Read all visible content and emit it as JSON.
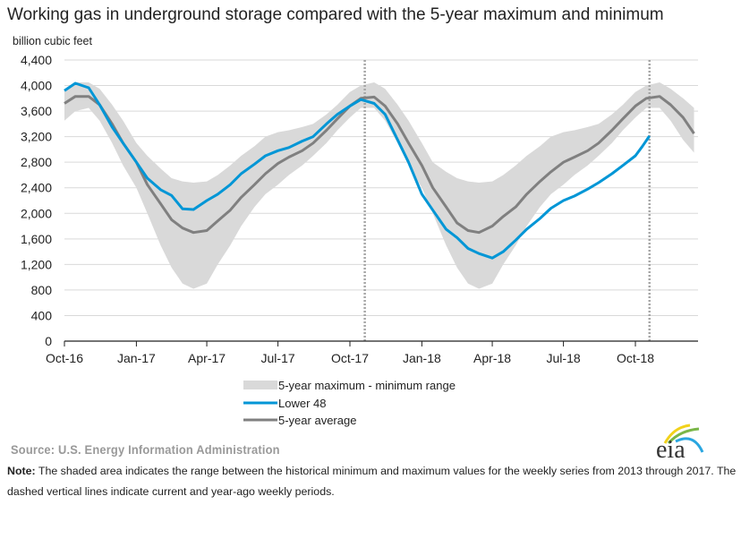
{
  "title": "Working gas in underground  storage compared with the 5-year maximum and minimum",
  "source": "Source:  U.S. Energy Information Administration",
  "note": {
    "label": "Note:",
    "text": " The shaded area indicates the range between the historical minimum and maximum values for the weekly series from 2013 through 2017. The dashed vertical lines indicate current and year-ago weekly periods."
  },
  "logo_text": "eia",
  "colors": {
    "range": "#d9d9d9",
    "lower48": "#0096d6",
    "average": "#808080",
    "dashed": "#a6a6a6",
    "grid": "#d9d9d9"
  },
  "chart_data": {
    "type": "line",
    "ylabel": "billion cubic feet",
    "ylim": [
      0,
      4400
    ],
    "yticks": [
      0,
      400,
      800,
      1200,
      1600,
      2000,
      2400,
      2800,
      3200,
      3600,
      4000,
      4400
    ],
    "ytick_labels": [
      "0",
      "400",
      "800",
      "1,200",
      "1,600",
      "2,000",
      "2,400",
      "2,800",
      "3,200",
      "3,600",
      "4,000",
      "4,400"
    ],
    "xlim": [
      "2016-10-01",
      "2018-12-20"
    ],
    "xticks": [
      "2016-10-01",
      "2017-01-01",
      "2017-04-01",
      "2017-07-01",
      "2017-10-01",
      "2018-01-01",
      "2018-04-01",
      "2018-07-01",
      "2018-10-01"
    ],
    "xtick_labels": [
      "Oct-16",
      "Jan-17",
      "Apr-17",
      "Jul-17",
      "Oct-17",
      "Jan-18",
      "Apr-18",
      "Jul-18",
      "Oct-18"
    ],
    "grid": "horizontal",
    "legend_placement": "bottom",
    "dashed_lines": [
      "2017-10-20",
      "2018-10-19"
    ],
    "x": [
      "2016-10-01",
      "2016-10-15",
      "2016-11-01",
      "2016-11-15",
      "2016-12-01",
      "2016-12-15",
      "2017-01-01",
      "2017-01-15",
      "2017-02-01",
      "2017-02-15",
      "2017-03-01",
      "2017-03-15",
      "2017-04-01",
      "2017-04-15",
      "2017-05-01",
      "2017-05-15",
      "2017-06-01",
      "2017-06-15",
      "2017-07-01",
      "2017-07-15",
      "2017-08-01",
      "2017-08-15",
      "2017-09-01",
      "2017-09-15",
      "2017-10-01",
      "2017-10-15",
      "2017-11-01",
      "2017-11-15",
      "2017-12-01",
      "2017-12-15",
      "2018-01-01",
      "2018-01-15",
      "2018-02-01",
      "2018-02-15",
      "2018-03-01",
      "2018-03-15",
      "2018-04-01",
      "2018-04-15",
      "2018-05-01",
      "2018-05-15",
      "2018-06-01",
      "2018-06-15",
      "2018-07-01",
      "2018-07-15",
      "2018-08-01",
      "2018-08-15",
      "2018-09-01",
      "2018-09-15",
      "2018-10-01",
      "2018-10-15",
      "2018-11-01",
      "2018-11-15",
      "2018-12-01",
      "2018-12-15"
    ],
    "range": {
      "name": "5-year maximum - minimum range",
      "max": [
        3930,
        4050,
        4050,
        3950,
        3700,
        3450,
        3100,
        2900,
        2700,
        2550,
        2500,
        2480,
        2500,
        2600,
        2750,
        2900,
        3050,
        3200,
        3270,
        3300,
        3350,
        3400,
        3550,
        3700,
        3900,
        4000,
        4050,
        3950,
        3700,
        3450,
        3100,
        2800,
        2650,
        2550,
        2500,
        2480,
        2500,
        2600,
        2750,
        2900,
        3050,
        3200,
        3270,
        3300,
        3350,
        3400,
        3550,
        3700,
        3900,
        4000,
        4050,
        3950,
        3800,
        3650
      ],
      "min": [
        3450,
        3600,
        3650,
        3450,
        3100,
        2750,
        2400,
        2000,
        1500,
        1150,
        900,
        820,
        900,
        1200,
        1500,
        1800,
        2100,
        2300,
        2450,
        2600,
        2750,
        2900,
        3100,
        3300,
        3500,
        3650,
        3650,
        3450,
        3100,
        2750,
        2400,
        2000,
        1500,
        1150,
        900,
        820,
        900,
        1200,
        1500,
        1800,
        2100,
        2300,
        2450,
        2600,
        2750,
        2900,
        3100,
        3300,
        3500,
        3650,
        3650,
        3450,
        3150,
        2950
      ]
    },
    "series": [
      {
        "name": "Lower 48",
        "x": [
          "2016-10-01",
          "2016-10-15",
          "2016-11-01",
          "2016-11-15",
          "2016-12-01",
          "2016-12-15",
          "2017-01-01",
          "2017-01-15",
          "2017-02-01",
          "2017-02-15",
          "2017-03-01",
          "2017-03-15",
          "2017-04-01",
          "2017-04-15",
          "2017-05-01",
          "2017-05-15",
          "2017-06-01",
          "2017-06-15",
          "2017-07-01",
          "2017-07-15",
          "2017-08-01",
          "2017-08-15",
          "2017-09-01",
          "2017-09-15",
          "2017-10-01",
          "2017-10-15",
          "2017-11-01",
          "2017-11-15",
          "2017-12-01",
          "2017-12-15",
          "2018-01-01",
          "2018-01-15",
          "2018-02-01",
          "2018-02-15",
          "2018-03-01",
          "2018-03-15",
          "2018-04-01",
          "2018-04-15",
          "2018-05-01",
          "2018-05-15",
          "2018-06-01",
          "2018-06-15",
          "2018-07-01",
          "2018-07-15",
          "2018-08-01",
          "2018-08-15",
          "2018-09-01",
          "2018-09-15",
          "2018-10-01",
          "2018-10-10",
          "2018-10-19"
        ],
        "values": [
          3920,
          4035,
          3965,
          3700,
          3350,
          3100,
          2800,
          2550,
          2370,
          2280,
          2070,
          2060,
          2200,
          2300,
          2450,
          2620,
          2770,
          2900,
          2980,
          3030,
          3130,
          3200,
          3400,
          3550,
          3680,
          3780,
          3720,
          3550,
          3150,
          2800,
          2300,
          2050,
          1750,
          1620,
          1450,
          1370,
          1300,
          1400,
          1580,
          1750,
          1920,
          2080,
          2200,
          2270,
          2380,
          2480,
          2620,
          2750,
          2900,
          3050,
          3210
        ]
      },
      {
        "name": "5-year average",
        "values": [
          3720,
          3830,
          3830,
          3700,
          3400,
          3100,
          2800,
          2450,
          2150,
          1900,
          1770,
          1700,
          1730,
          1880,
          2050,
          2250,
          2450,
          2620,
          2780,
          2880,
          2980,
          3100,
          3300,
          3480,
          3680,
          3800,
          3820,
          3680,
          3400,
          3100,
          2750,
          2400,
          2100,
          1850,
          1730,
          1700,
          1800,
          1950,
          2100,
          2300,
          2500,
          2650,
          2800,
          2880,
          2980,
          3100,
          3300,
          3480,
          3680,
          3800,
          3830,
          3700,
          3500,
          3250
        ]
      }
    ]
  }
}
